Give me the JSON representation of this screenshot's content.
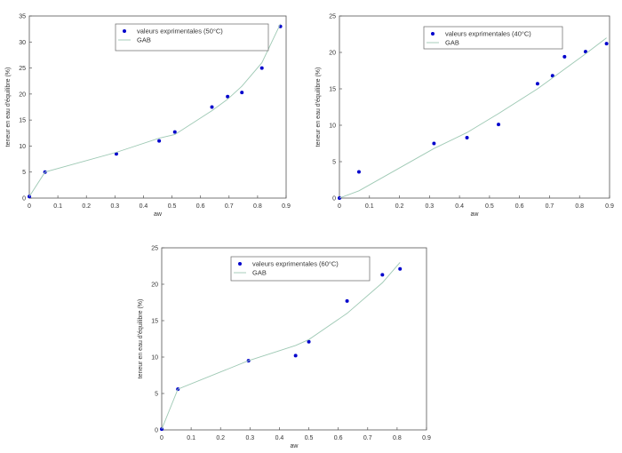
{
  "chart_data": [
    {
      "type": "scatter",
      "xlabel": "aw",
      "ylabel": "teneur en eau d'équilibre (%)",
      "xlim": [
        0,
        0.9
      ],
      "ylim": [
        0,
        35
      ],
      "xticks": [
        "0",
        "0.1",
        "0.2",
        "0.3",
        "0.4",
        "0.5",
        "0.6",
        "0.7",
        "0.8",
        "0.9"
      ],
      "yticks": [
        "0",
        "5",
        "10",
        "15",
        "20",
        "25",
        "30",
        "35"
      ],
      "grid": false,
      "legend_position": "top-center",
      "series": [
        {
          "name": "valeurs exprimentales (50°C)",
          "kind": "markers",
          "color": "#0000cc",
          "x": [
            0.0,
            0.055,
            0.305,
            0.455,
            0.51,
            0.64,
            0.695,
            0.745,
            0.815,
            0.88
          ],
          "y": [
            0.3,
            5.0,
            8.5,
            11.0,
            12.7,
            17.5,
            19.5,
            20.3,
            25.0,
            33.0
          ]
        },
        {
          "name": "GAB",
          "kind": "line",
          "color": "#9ec9b4",
          "x": [
            0.0,
            0.055,
            0.305,
            0.455,
            0.51,
            0.64,
            0.695,
            0.745,
            0.815,
            0.88
          ],
          "y": [
            0.3,
            5.0,
            8.8,
            11.5,
            12.2,
            16.8,
            19.0,
            21.5,
            26.0,
            33.5
          ]
        }
      ]
    },
    {
      "type": "scatter",
      "xlabel": "aw",
      "ylabel": "teneur en eau d'équilibre (%)",
      "xlim": [
        0,
        0.9
      ],
      "ylim": [
        0,
        25
      ],
      "xticks": [
        "0",
        "0.1",
        "0.2",
        "0.3",
        "0.4",
        "0.5",
        "0.6",
        "0.7",
        "0.8",
        "0.9"
      ],
      "yticks": [
        "0",
        "5",
        "10",
        "15",
        "20",
        "25"
      ],
      "grid": false,
      "legend_position": "top-right",
      "series": [
        {
          "name": "valeurs exprimentales (40°C)",
          "kind": "markers",
          "color": "#0000cc",
          "x": [
            0.0,
            0.065,
            0.315,
            0.425,
            0.53,
            0.66,
            0.71,
            0.75,
            0.82,
            0.89
          ],
          "y": [
            0.0,
            3.6,
            7.5,
            8.3,
            10.1,
            15.7,
            16.8,
            19.4,
            20.1,
            21.2
          ]
        },
        {
          "name": "GAB",
          "kind": "line",
          "color": "#9ec9b4",
          "x": [
            0.0,
            0.065,
            0.315,
            0.425,
            0.53,
            0.66,
            0.71,
            0.75,
            0.82,
            0.89
          ],
          "y": [
            0.0,
            1.0,
            6.8,
            9.0,
            11.6,
            15.0,
            16.5,
            17.7,
            19.8,
            22.0
          ]
        }
      ]
    },
    {
      "type": "scatter",
      "xlabel": "aw",
      "ylabel": "teneur en eau d'équilibre (%)",
      "xlim": [
        0,
        0.9
      ],
      "ylim": [
        0,
        25
      ],
      "xticks": [
        "0",
        "0.1",
        "0.2",
        "0.3",
        "0.4",
        "0.5",
        "0.6",
        "0.7",
        "0.8",
        "0.9"
      ],
      "yticks": [
        "0",
        "5",
        "10",
        "15",
        "20",
        "25"
      ],
      "grid": false,
      "legend_position": "top-center",
      "series": [
        {
          "name": "valeurs exprimentales (60°C)",
          "kind": "markers",
          "color": "#0000cc",
          "x": [
            0.0,
            0.055,
            0.295,
            0.455,
            0.5,
            0.63,
            0.75,
            0.81
          ],
          "y": [
            0.1,
            5.6,
            9.5,
            10.2,
            12.1,
            17.7,
            21.3,
            22.1
          ]
        },
        {
          "name": "GAB",
          "kind": "line",
          "color": "#9ec9b4",
          "x": [
            0.0,
            0.055,
            0.295,
            0.455,
            0.5,
            0.63,
            0.75,
            0.81
          ],
          "y": [
            0.1,
            5.6,
            9.5,
            11.6,
            12.4,
            16.0,
            20.2,
            23.0
          ]
        }
      ]
    }
  ]
}
